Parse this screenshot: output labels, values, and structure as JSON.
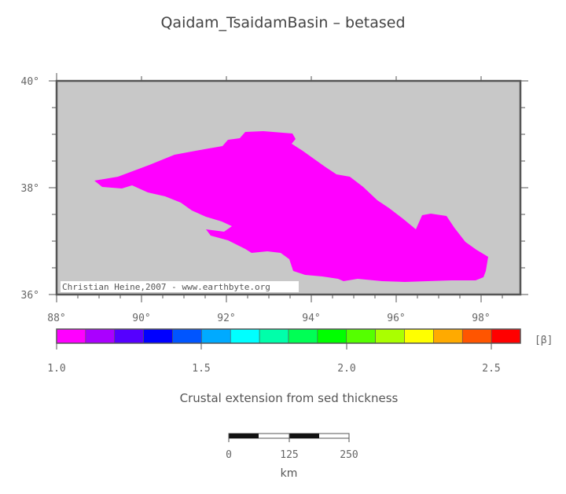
{
  "title": "Qaidam_TsaidamBasin – betased",
  "credit": "Christian Heine,2007 - www.earthbyte.org",
  "lat_labels": [
    "40°",
    "38°",
    "36°"
  ],
  "lon_labels": [
    "88°",
    "90°",
    "92°",
    "94°",
    "96°",
    "98°"
  ],
  "colorbar": {
    "unit": "[β]",
    "labels": [
      "1.0",
      "1.5",
      "2.0",
      "2.5"
    ],
    "colors": [
      "#ff00ff",
      "#aa00ff",
      "#5500ff",
      "#0000ff",
      "#0055ff",
      "#00aaff",
      "#00ffff",
      "#00ffaa",
      "#00ff55",
      "#00ff00",
      "#55ff00",
      "#aaff00",
      "#ffff00",
      "#ffaa00",
      "#ff5500",
      "#ff0000"
    ]
  },
  "caption": "Crustal extension from sed thickness",
  "scalebar": {
    "labels": [
      "0",
      "125",
      "250"
    ],
    "unit": "km"
  },
  "colors": {
    "background_map": "#c8c8c8",
    "basin_fill": "#ff00ff",
    "frame": "#555555"
  }
}
